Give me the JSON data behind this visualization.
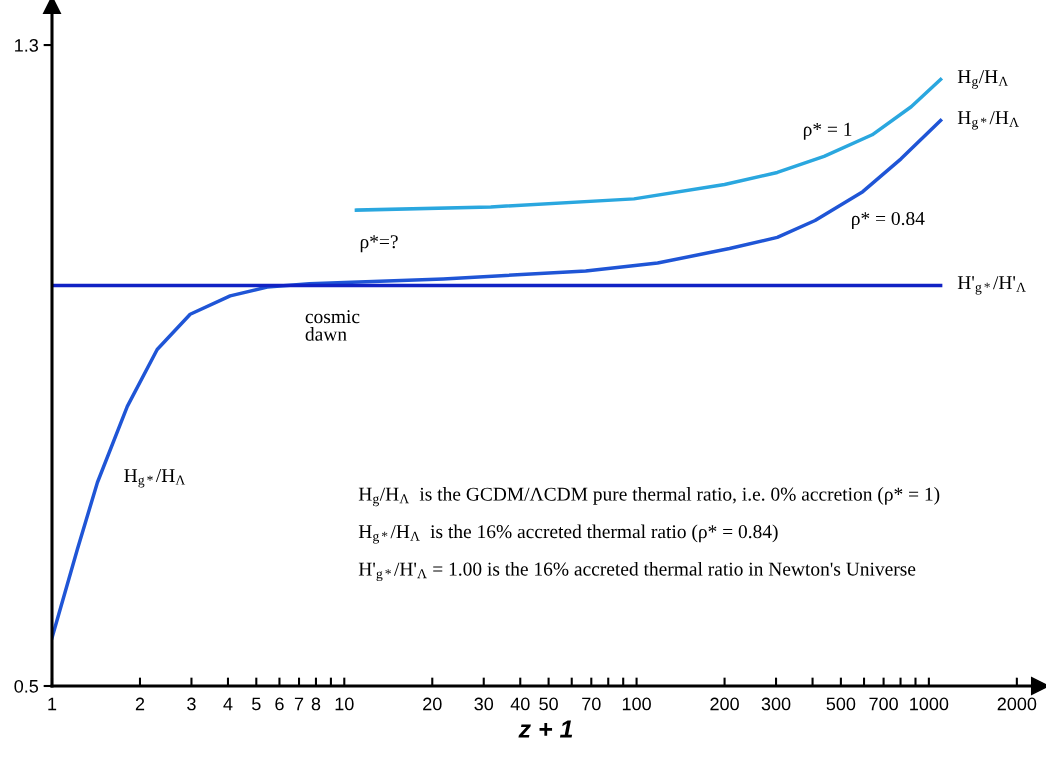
{
  "chart_data": {
    "type": "line",
    "xlabel": "z + 1",
    "log": "x",
    "grid": false,
    "legend": false,
    "marker": "none",
    "line_style": "solid",
    "xlim": [
      1,
      2400
    ],
    "ylim": [
      0.5,
      1.35
    ],
    "xticks": [
      1,
      2,
      3,
      4,
      5,
      6,
      7,
      8,
      {
        "value": 9,
        "label": null
      },
      10,
      20,
      30,
      40,
      50,
      {
        "value": 60,
        "label": null
      },
      70,
      {
        "value": 80,
        "label": null
      },
      {
        "value": 90,
        "label": null
      },
      100,
      200,
      300,
      {
        "value": 400,
        "label": null
      },
      500,
      {
        "value": 600,
        "label": null
      },
      700,
      {
        "value": 800,
        "label": null
      },
      {
        "value": 900,
        "label": null
      },
      1000,
      2000
    ],
    "yticks": [
      0.5,
      1.3
    ],
    "series": [
      {
        "name": "H$_{g}$/H$_{Λ}$",
        "color": "#2aa7df",
        "x": [
          11.0,
          31.7,
          98,
          200,
          303,
          438,
          640,
          870,
          1097
        ],
        "values": [
          1.094,
          1.098,
          1.108,
          1.126,
          1.141,
          1.161,
          1.188,
          1.223,
          1.257
        ]
      },
      {
        "name": "H$_{g*}$/H$_{Λ}$",
        "color": "#1f55d6",
        "x": [
          1,
          1.22,
          1.43,
          1.81,
          2.29,
          2.97,
          4.07,
          5.45,
          7.6,
          21.8,
          67,
          118,
          208,
          303,
          408,
          594,
          803,
          1097
        ],
        "values": [
          0.56,
          0.67,
          0.754,
          0.849,
          0.92,
          0.964,
          0.987,
          0.998,
          1.002,
          1.008,
          1.018,
          1.028,
          1.046,
          1.06,
          1.081,
          1.117,
          1.158,
          1.206
        ]
      },
      {
        "name": "H'$_{g*}$/H'$_{Λ}$",
        "color": "#1122c4",
        "x": [
          1,
          1097
        ],
        "values": [
          1.0,
          1.0
        ]
      }
    ],
    "annotations": [
      "ρ* = 1",
      "ρ* = 0.84",
      "ρ*=?",
      "cosmic\ndawn",
      "H$_{g*}$/H$_{Λ}$",
      "H$_{g}$/H$_{Λ}$  is the GCDM/ΛCDM pure thermal ratio, i.e. 0% accretion (ρ* = 1)",
      "H$_{g*}$/H$_{Λ}$  is the 16% accreted thermal ratio (ρ* = 0.84)",
      "H'$_{g*}$/H'$_{Λ}$ = 1.00 is the 16% accreted thermal ratio in Newton's Universe"
    ]
  }
}
